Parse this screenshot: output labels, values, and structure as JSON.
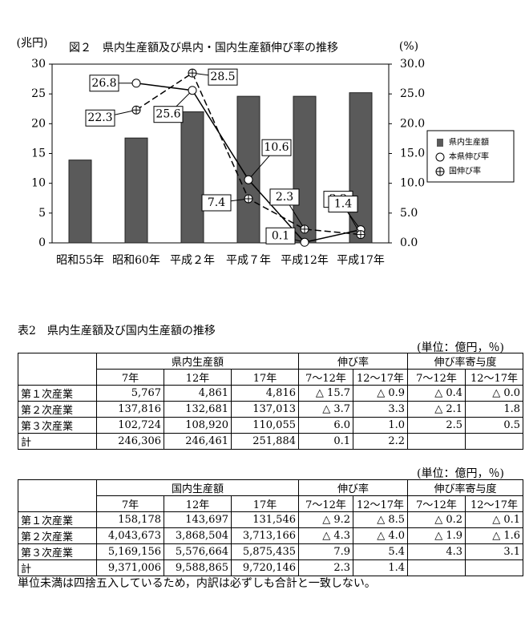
{
  "chart_data": {
    "type": "bar",
    "title": "図２　県内生産額及び県内・国内生産額伸び率の推移",
    "y_label": "(兆円)",
    "y2_label": "(%)",
    "categories": [
      "昭和55年",
      "昭和60年",
      "平成２年",
      "平成７年",
      "平成12年",
      "平成17年"
    ],
    "series": [
      {
        "name": "県内生産額",
        "type": "bar",
        "color": "#5a5a5a",
        "values": [
          13.9,
          17.6,
          22.0,
          24.6,
          24.6,
          25.2
        ]
      },
      {
        "name": "本県伸び率",
        "type": "line",
        "axis": "y2",
        "color": "#000000",
        "marker": "circle",
        "dashed": false,
        "values": [
          null,
          26.8,
          25.6,
          10.6,
          0.1,
          2.2
        ]
      },
      {
        "name": "国伸び率",
        "type": "line",
        "axis": "y2",
        "color": "#000000",
        "marker": "crossed-circle",
        "dashed": true,
        "values": [
          null,
          22.3,
          28.5,
          7.4,
          2.3,
          1.4
        ]
      }
    ],
    "ylim": [
      0,
      30
    ],
    "yticks": [
      0,
      5,
      10,
      15,
      20,
      25,
      30
    ],
    "y2lim": [
      0,
      30
    ],
    "y2ticks": [
      {
        "value": 0,
        "label": "0.0"
      },
      {
        "value": 5,
        "label": "5.0"
      },
      {
        "value": 10,
        "label": "10.0"
      },
      {
        "value": 15,
        "label": "15.0"
      },
      {
        "value": 20,
        "label": "20.0"
      },
      {
        "value": 25,
        "label": "25.0"
      },
      {
        "value": 30,
        "label": "30.0"
      }
    ],
    "legend": "right"
  },
  "table1": {
    "title": "表2　県内生産額及び国内生産額の推移",
    "unit": "(単位：億円，％)",
    "groups": [
      "県内生産額",
      "伸び率",
      "伸び率寄与度"
    ],
    "subheader": [
      "7年",
      "12年",
      "17年",
      "7～12年",
      "12～17年",
      "7～12年",
      "12～17年"
    ],
    "rows": [
      [
        "第１次産業",
        "5,767",
        "4,861",
        "4,816",
        "△ 15.7",
        "△ 0.9",
        "△ 0.4",
        "△ 0.0"
      ],
      [
        "第２次産業",
        "137,816",
        "132,681",
        "137,013",
        "△ 3.7",
        "3.3",
        "△ 2.1",
        "1.8"
      ],
      [
        "第３次産業",
        "102,724",
        "108,920",
        "110,055",
        "6.0",
        "1.0",
        "2.5",
        "0.5"
      ],
      [
        "計",
        "246,306",
        "246,461",
        "251,884",
        "0.1",
        "2.2",
        null,
        null
      ]
    ]
  },
  "table2": {
    "unit": "(単位：億円，％)",
    "groups": [
      "国内生産額",
      "伸び率",
      "伸び率寄与度"
    ],
    "subheader": [
      "7年",
      "12年",
      "17年",
      "7～12年",
      "12～17年",
      "7～12年",
      "12～17年"
    ],
    "rows": [
      [
        "第１次産業",
        "158,178",
        "143,697",
        "131,546",
        "△ 9.2",
        "△ 8.5",
        "△ 0.2",
        "△ 0.1"
      ],
      [
        "第２次産業",
        "4,043,673",
        "3,868,504",
        "3,713,166",
        "△ 4.3",
        "△ 4.0",
        "△ 1.9",
        "△ 1.6"
      ],
      [
        "第３次産業",
        "5,169,156",
        "5,576,664",
        "5,875,435",
        "7.9",
        "5.4",
        "4.3",
        "3.1"
      ],
      [
        "計",
        "9,371,006",
        "9,588,865",
        "9,720,146",
        "2.3",
        "1.4",
        null,
        null
      ]
    ]
  },
  "note": "単位未満は四捨五入しているため，内訳は必ずしも合計と一致しない。"
}
